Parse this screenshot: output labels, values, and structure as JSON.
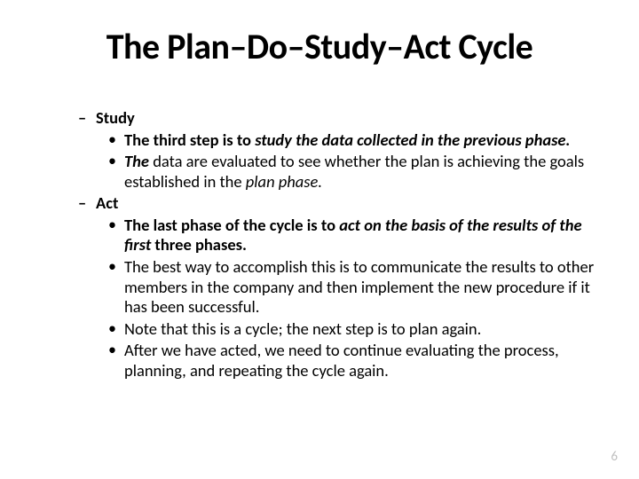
{
  "title": "The Plan–Do–Study–Act Cycle",
  "sections": [
    {
      "heading": "Study",
      "bullets": [
        {
          "html": "<span class='bold'>The third step is to </span><span class='bold ital'>study the data collected in the previous phase.</span>"
        },
        {
          "html": " <span class='bold ital'>The</span> data are evaluated to see whether the plan is achieving the goals established in the <span class='ital'>plan phase.</span>"
        }
      ]
    },
    {
      "heading": "Act",
      "bullets": [
        {
          "html": "<span class='bold'>The last phase of the cycle is to </span><span class='bold ital'>act on the basis of the results of the first</span><span class='bold'> three phases.</span>"
        },
        {
          "html": "The best way to accomplish this is to communicate the results to other members in the company and then implement the new procedure if it has been successful."
        },
        {
          "html": "Note that this is a cycle; the next step is to plan again."
        },
        {
          "html": " After we have acted, we need to continue evaluating the process, planning, and repeating the cycle again."
        }
      ]
    }
  ],
  "pageNumber": "6",
  "colors": {
    "background": "#ffffff",
    "text": "#000000",
    "pageNumber": "#bfbfbf"
  },
  "typography": {
    "titleFontSize": 40,
    "bodyFontSize": 18.5,
    "fontFamily": "Calibri"
  }
}
